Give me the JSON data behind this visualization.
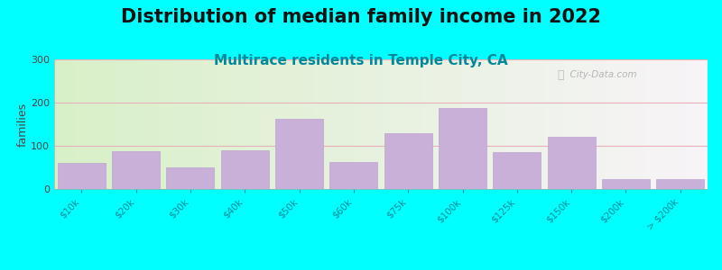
{
  "title": "Distribution of median family income in 2022",
  "subtitle": "Multirace residents in Temple City, CA",
  "ylabel": "families",
  "background_outer": "#00FFFF",
  "background_left_color": "#d8f0c8",
  "background_right_color": "#f8f4f8",
  "bar_color": "#c8b0d8",
  "bar_edge_color": "#b898cc",
  "categories": [
    "$10k",
    "$20k",
    "$30k",
    "$40k",
    "$50k",
    "$60k",
    "$75k",
    "$100k",
    "$125k",
    "$150k",
    "$200k",
    "> $200k"
  ],
  "values": [
    60,
    88,
    50,
    90,
    162,
    62,
    130,
    188,
    85,
    120,
    22,
    22
  ],
  "ylim": [
    0,
    300
  ],
  "yticks": [
    0,
    100,
    200,
    300
  ],
  "watermark": "City-Data.com",
  "title_fontsize": 15,
  "subtitle_fontsize": 11,
  "ylabel_fontsize": 9,
  "tick_color": "#008898",
  "grid_color": "#e8b0b8",
  "title_color": "#111111",
  "subtitle_color": "#008898"
}
